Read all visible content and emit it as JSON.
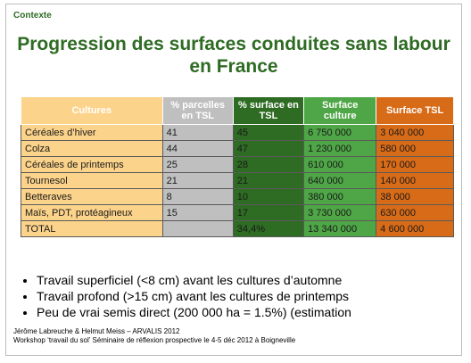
{
  "header": {
    "context": "Contexte",
    "title_line1": "Progression des surfaces conduites sans labour",
    "title_line2": "en France"
  },
  "table": {
    "headers": [
      "Cultures",
      "% parcelles en TSL",
      "% surface en TSL",
      "Surface culture",
      "Surface TSL"
    ],
    "rows": [
      [
        "Céréales d’hiver",
        "41",
        "45",
        "6 750 000",
        "3 040 000"
      ],
      [
        "Colza",
        "44",
        "47",
        "1 230 000",
        "580 000"
      ],
      [
        "Céréales de printemps",
        "25",
        "28",
        "610 000",
        "170 000"
      ],
      [
        "Tournesol",
        "21",
        "21",
        "640 000",
        "140 000"
      ],
      [
        "Betteraves",
        "8",
        "10",
        "380 000",
        "38 000"
      ],
      [
        "Maïs, PDT, protéagineux",
        "15",
        "17",
        "3 730 000",
        "630 000"
      ],
      [
        "TOTAL",
        "",
        "34,4%",
        "13 340 000",
        "4 600 000"
      ]
    ]
  },
  "bullets": [
    "Travail superficiel (<8 cm) avant les cultures d’automne",
    "Travail profond (>15 cm) avant les cultures de printemps",
    "Peu de vrai semis direct (200 000 ha = 1.5%) (estimation"
  ],
  "footer": {
    "line1": "Jérôme Labreuche & Helmut Meiss – ARVALIS 2012",
    "line2": "Workshop ‘travail du sol’ Séminaire de réflexion prospective le 4-5 déc 2012 à Boigneville"
  },
  "colors": {
    "title_green": "#2e6b23",
    "col_cultures": "#fcd38a",
    "col_parcelles": "#bfbfbf",
    "col_surface_pct": "#2e6b23",
    "col_surface_culture": "#4ea646",
    "col_surface_tsl": "#d86b18"
  }
}
